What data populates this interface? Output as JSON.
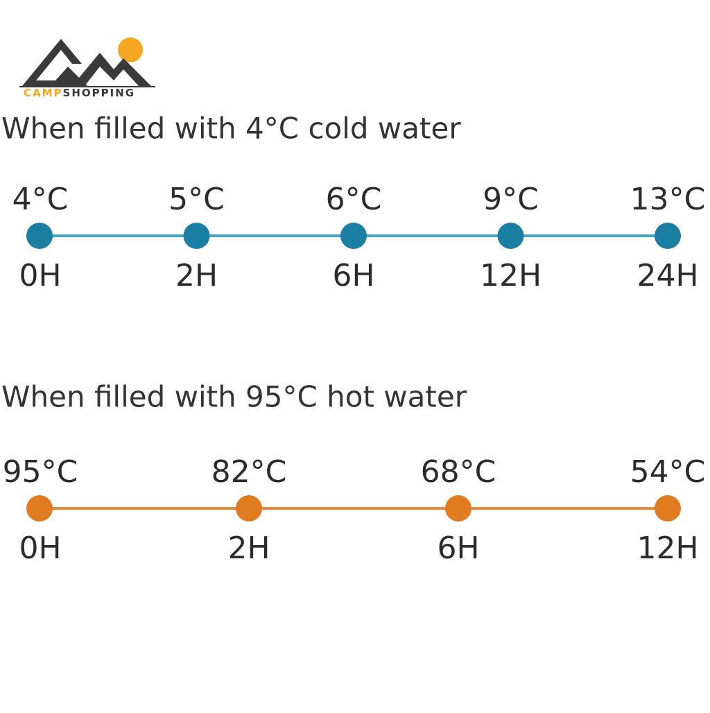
{
  "logo": {
    "parts": [
      "CAMP",
      "SHOPPING"
    ]
  },
  "sections": [
    {
      "title": "When filled with 4°C cold water",
      "points": [
        {
          "temp": "4°C",
          "time": "0H"
        },
        {
          "temp": "5°C",
          "time": "2H"
        },
        {
          "temp": "6°C",
          "time": "6H"
        },
        {
          "temp": "9°C",
          "time": "12H"
        },
        {
          "temp": "13°C",
          "time": "24H"
        }
      ]
    },
    {
      "title": "When filled with 95°C hot water",
      "points": [
        {
          "temp": "95°C",
          "time": "0H"
        },
        {
          "temp": "82°C",
          "time": "2H"
        },
        {
          "temp": "68°C",
          "time": "6H"
        },
        {
          "temp": "54°C",
          "time": "12H"
        }
      ]
    }
  ]
}
